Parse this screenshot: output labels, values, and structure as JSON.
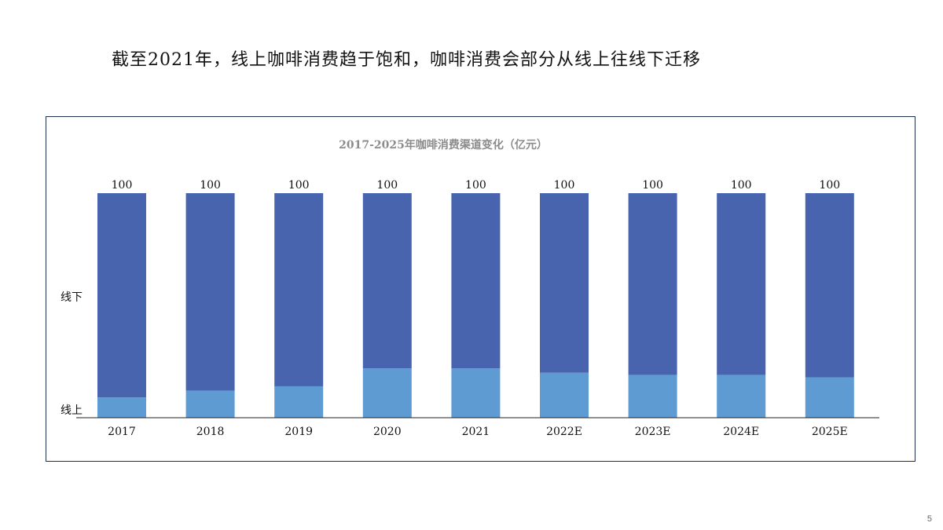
{
  "slide": {
    "title": "截至2021年，线上咖啡消费趋于饱和，咖啡消费会部分从线上往线下迁移",
    "page_number": "5"
  },
  "colors": {
    "offline": "#4864AE",
    "online": "#5E9BD3",
    "title_gray": "#8C8C8C",
    "frame": "#1F2F4F"
  },
  "chart_data": {
    "type": "bar",
    "stacked": true,
    "title": "2017-2025年咖啡消费渠道变化（亿元）",
    "categories": [
      "2017",
      "2018",
      "2019",
      "2020",
      "2021",
      "2022E",
      "2023E",
      "2024E",
      "2025E"
    ],
    "totals_labels": [
      "100",
      "100",
      "100",
      "100",
      "100",
      "100",
      "100",
      "100",
      "100"
    ],
    "series": [
      {
        "name": "线上",
        "values": [
          9,
          12,
          14,
          22,
          22,
          20,
          19,
          19,
          18
        ]
      },
      {
        "name": "线下",
        "values": [
          91,
          88,
          86,
          78,
          78,
          80,
          81,
          81,
          82
        ]
      }
    ],
    "ylim": [
      0,
      100
    ],
    "grid": false,
    "legend": "left, inline"
  }
}
